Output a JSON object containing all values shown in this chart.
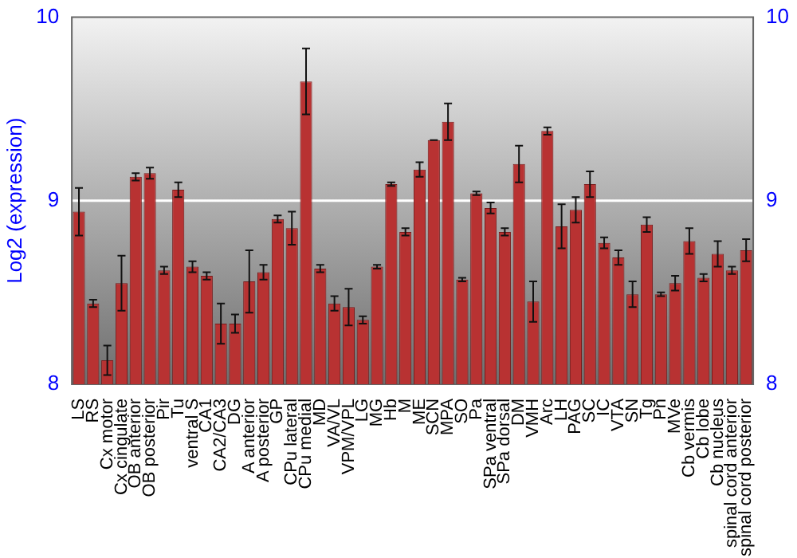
{
  "chart_data": {
    "type": "bar",
    "ylabel": "Log2 (expression)",
    "categories": [
      "LS",
      "RS",
      "Cx motor",
      "Cx cingulate",
      "OB anterior",
      "OB posterior",
      "Pir",
      "Tu",
      "ventral S",
      "CA1",
      "CA2/CA3",
      "DG",
      "A anterior",
      "A posterior",
      "GP",
      "CPu lateral",
      "CPu medial",
      "MD",
      "VA/VL",
      "VPM/VPL",
      "LG",
      "MG",
      "Hb",
      "M",
      "ME",
      "SCN",
      "MPA",
      "SO",
      "Pa",
      "SPa ventral",
      "SPa dorsal",
      "DM",
      "VMH",
      "Arc",
      "LH",
      "PAG",
      "SC",
      "IC",
      "VTA",
      "SN",
      "Tg",
      "Pn",
      "MVe",
      "Cb vermis",
      "Cb lobe",
      "Cb nucleus",
      "spinal cord anterior",
      "spinal cord posterior"
    ],
    "values": [
      8.94,
      8.44,
      8.13,
      8.55,
      9.13,
      9.15,
      8.62,
      9.06,
      8.64,
      8.59,
      8.33,
      8.33,
      8.56,
      8.61,
      8.9,
      8.85,
      9.65,
      8.63,
      8.44,
      8.42,
      8.35,
      8.64,
      9.09,
      8.83,
      9.17,
      9.33,
      9.43,
      8.57,
      9.04,
      8.96,
      8.83,
      9.2,
      8.45,
      9.38,
      8.86,
      8.95,
      9.09,
      8.77,
      8.69,
      8.49,
      8.87,
      8.49,
      8.55,
      8.78,
      8.58,
      8.71,
      8.62,
      8.73
    ],
    "errors": [
      0.13,
      0.02,
      0.08,
      0.15,
      0.02,
      0.03,
      0.02,
      0.04,
      0.03,
      0.02,
      0.11,
      0.05,
      0.17,
      0.04,
      0.02,
      0.09,
      0.18,
      0.02,
      0.04,
      0.1,
      0.02,
      0.01,
      0.01,
      0.02,
      0.04,
      0,
      0.1,
      0.01,
      0.01,
      0.03,
      0.02,
      0.1,
      0.11,
      0.02,
      0.12,
      0.07,
      0.07,
      0.03,
      0.04,
      0.07,
      0.04,
      0.01,
      0.04,
      0.07,
      0.02,
      0.07,
      0.02,
      0.06
    ],
    "color": "#b83232",
    "ylim": [
      8,
      10
    ],
    "yticks": [
      8,
      9,
      10
    ],
    "y2lim": [
      8,
      10
    ],
    "y2ticks": [
      8,
      9,
      10
    ],
    "grid": "y",
    "legend": false
  }
}
